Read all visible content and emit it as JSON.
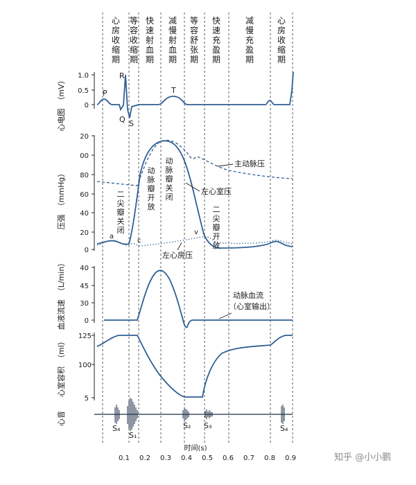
{
  "phases": {
    "p1": [
      "心",
      "房",
      "收",
      "缩",
      "期"
    ],
    "p2": [
      "等",
      "容",
      "收",
      "缩",
      "期"
    ],
    "p3": [
      "快",
      "速",
      "射",
      "血",
      "期"
    ],
    "p4": [
      "减",
      "慢",
      "射",
      "血",
      "期"
    ],
    "p5": [
      "等",
      "容",
      "舒",
      "张",
      "期"
    ],
    "p6": [
      "快",
      "速",
      "充",
      "盈",
      "期"
    ],
    "p7": [
      "减",
      "慢",
      "充",
      "盈",
      "期"
    ],
    "p8": [
      "心",
      "房",
      "收",
      "缩",
      "期"
    ]
  },
  "ecg": {
    "label": "心电图",
    "unit": "（mV）",
    "ticks": [
      "1.0",
      "0.5",
      "0"
    ],
    "waves": {
      "p": "P",
      "r": "R",
      "q": "Q",
      "s": "S",
      "t": "T"
    }
  },
  "pressure": {
    "label": "压强",
    "unit": "（mmHg）",
    "ticks": [
      "20",
      "00",
      "80",
      "60",
      "40",
      "20",
      "0"
    ],
    "aortic": "主动脉压",
    "ventricle": "左心室压",
    "atrium": "左心房压",
    "aortic_close": [
      "动",
      "脉",
      "瓣",
      "关",
      "闭"
    ],
    "aortic_open": [
      "动",
      "脉",
      "瓣",
      "开",
      "放"
    ],
    "mitral_close": [
      "二",
      "尖",
      "瓣",
      "关",
      "闭"
    ],
    "mitral_open": [
      "二",
      "尖",
      "瓣",
      "开",
      "放"
    ],
    "a": "a",
    "c": "c",
    "v": "v"
  },
  "flow": {
    "label": "血液流速",
    "unit": "（L/min）",
    "ticks": [
      "40",
      "45",
      "30",
      "20",
      "0"
    ],
    "anno1": "动脉血流",
    "anno2": "（心室输出）"
  },
  "volume": {
    "label": "心室容积",
    "unit": "（ml）",
    "ticks": [
      "125",
      "100",
      "5"
    ]
  },
  "sound": {
    "label": "心音",
    "s4a": "S₄",
    "s1": "S₁",
    "s2": "S₂",
    "s3": "S₃",
    "s4b": "S₄"
  },
  "xaxis": {
    "ticks": [
      "0.1",
      "0.2",
      "0.3",
      "0.4",
      "0.5",
      "0.6",
      "0.7",
      "0.8",
      "0.9"
    ],
    "label": "时间(s)"
  },
  "watermark": "知乎 @小小鹏",
  "colors": {
    "curve": "#2e5f93"
  }
}
